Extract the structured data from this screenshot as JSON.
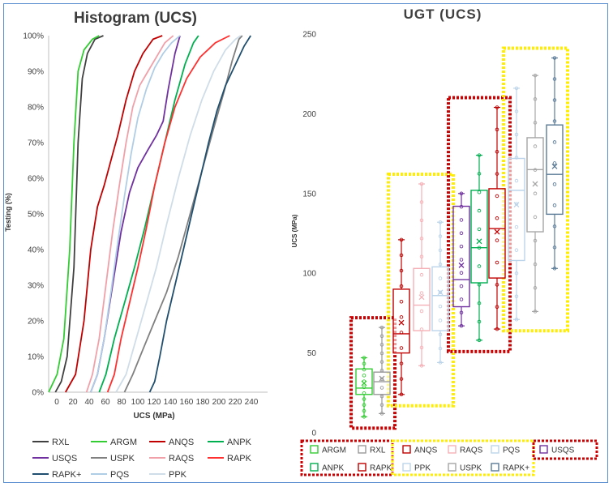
{
  "chart_data": [
    {
      "type": "line",
      "title": "Histogram (UCS)",
      "xlabel": "UCS (MPa)",
      "ylabel": "Testing (%)",
      "xlim": [
        0,
        260
      ],
      "ylim": [
        0,
        100
      ],
      "x_ticks": [
        "0",
        "20",
        "40",
        "60",
        "80",
        "100",
        "120",
        "140",
        "160",
        "180",
        "200",
        "220",
        "240"
      ],
      "y_ticks": [
        "0%",
        "10%",
        "20%",
        "30%",
        "40%",
        "50%",
        "60%",
        "70%",
        "80%",
        "90%",
        "100%"
      ],
      "legend_position": "bottom",
      "series": [
        {
          "name": "RXL",
          "color": "#404040",
          "points": [
            [
              8,
              0
            ],
            [
              15,
              3
            ],
            [
              22,
              10
            ],
            [
              30,
              35
            ],
            [
              35,
              70
            ],
            [
              40,
              88
            ],
            [
              46,
              95
            ],
            [
              55,
              99
            ],
            [
              65,
              100
            ]
          ]
        },
        {
          "name": "ARGM",
          "color": "#33cc33",
          "points": [
            [
              0,
              0
            ],
            [
              10,
              5
            ],
            [
              18,
              15
            ],
            [
              25,
              40
            ],
            [
              30,
              70
            ],
            [
              35,
              90
            ],
            [
              42,
              96
            ],
            [
              52,
              99
            ],
            [
              60,
              100
            ]
          ]
        },
        {
          "name": "ANQS",
          "color": "#c00000",
          "points": [
            [
              20,
              0
            ],
            [
              32,
              5
            ],
            [
              42,
              20
            ],
            [
              50,
              40
            ],
            [
              58,
              52
            ],
            [
              66,
              58
            ],
            [
              74,
              65
            ],
            [
              82,
              72
            ],
            [
              92,
              82
            ],
            [
              102,
              90
            ],
            [
              112,
              95
            ],
            [
              124,
              99
            ],
            [
              135,
              100
            ]
          ]
        },
        {
          "name": "ANPK",
          "color": "#00b050",
          "points": [
            [
              60,
              0
            ],
            [
              68,
              5
            ],
            [
              78,
              15
            ],
            [
              90,
              25
            ],
            [
              102,
              35
            ],
            [
              114,
              46
            ],
            [
              126,
              58
            ],
            [
              138,
              70
            ],
            [
              150,
              82
            ],
            [
              162,
              92
            ],
            [
              172,
              98
            ],
            [
              178,
              100
            ]
          ]
        },
        {
          "name": "USQS",
          "color": "#7030a0",
          "points": [
            [
              50,
              0
            ],
            [
              58,
              5
            ],
            [
              66,
              15
            ],
            [
              76,
              30
            ],
            [
              86,
              45
            ],
            [
              96,
              56
            ],
            [
              106,
              63
            ],
            [
              118,
              68
            ],
            [
              128,
              72
            ],
            [
              136,
              76
            ],
            [
              142,
              85
            ],
            [
              150,
              95
            ],
            [
              156,
              100
            ]
          ]
        },
        {
          "name": "USPK",
          "color": "#808080",
          "points": [
            [
              90,
              0
            ],
            [
              100,
              5
            ],
            [
              112,
              12
            ],
            [
              126,
              20
            ],
            [
              140,
              28
            ],
            [
              154,
              38
            ],
            [
              168,
              50
            ],
            [
              182,
              62
            ],
            [
              196,
              74
            ],
            [
              208,
              84
            ],
            [
              218,
              93
            ],
            [
              226,
              99
            ],
            [
              230,
              100
            ]
          ]
        },
        {
          "name": "RAQS",
          "color": "#f0a0a8",
          "points": [
            [
              45,
              0
            ],
            [
              52,
              5
            ],
            [
              60,
              15
            ],
            [
              68,
              30
            ],
            [
              76,
              45
            ],
            [
              84,
              58
            ],
            [
              92,
              70
            ],
            [
              100,
              80
            ],
            [
              108,
              86
            ],
            [
              118,
              90
            ],
            [
              128,
              94
            ],
            [
              138,
              98
            ],
            [
              148,
              100
            ]
          ]
        },
        {
          "name": "RAPK",
          "color": "#ff3030",
          "points": [
            [
              70,
              0
            ],
            [
              78,
              5
            ],
            [
              86,
              15
            ],
            [
              96,
              25
            ],
            [
              106,
              35
            ],
            [
              116,
              46
            ],
            [
              126,
              58
            ],
            [
              138,
              70
            ],
            [
              150,
              80
            ],
            [
              164,
              88
            ],
            [
              180,
              94
            ],
            [
              198,
              98
            ],
            [
              215,
              100
            ]
          ]
        },
        {
          "name": "RAPK+",
          "color": "#1f4e6e",
          "points": [
            [
              120,
              0
            ],
            [
              126,
              3
            ],
            [
              132,
              10
            ],
            [
              140,
              20
            ],
            [
              150,
              30
            ],
            [
              160,
              40
            ],
            [
              170,
              50
            ],
            [
              180,
              60
            ],
            [
              190,
              70
            ],
            [
              200,
              79
            ],
            [
              210,
              86
            ],
            [
              222,
              92
            ],
            [
              232,
              97
            ],
            [
              240,
              100
            ]
          ]
        },
        {
          "name": "PQS",
          "color": "#b0cde6",
          "points": [
            [
              50,
              0
            ],
            [
              58,
              5
            ],
            [
              66,
              15
            ],
            [
              74,
              28
            ],
            [
              82,
              42
            ],
            [
              90,
              55
            ],
            [
              98,
              67
            ],
            [
              106,
              77
            ],
            [
              116,
              85
            ],
            [
              126,
              91
            ],
            [
              136,
              95
            ],
            [
              146,
              98
            ],
            [
              156,
              100
            ]
          ]
        },
        {
          "name": "PPK",
          "color": "#cfdde8",
          "points": [
            [
              80,
              0
            ],
            [
              92,
              5
            ],
            [
              104,
              15
            ],
            [
              116,
              25
            ],
            [
              128,
              35
            ],
            [
              140,
              47
            ],
            [
              154,
              60
            ],
            [
              168,
              72
            ],
            [
              182,
              82
            ],
            [
              196,
              90
            ],
            [
              210,
              96
            ],
            [
              222,
              99
            ],
            [
              228,
              100
            ]
          ]
        }
      ]
    },
    {
      "type": "box",
      "title": "UGT (UCS)",
      "ylabel": "UCS (MPa)",
      "ylim": [
        0,
        250
      ],
      "y_ticks": [
        "0",
        "50",
        "100",
        "150",
        "200",
        "250"
      ],
      "boxes": [
        {
          "name": "ARGM",
          "color": "#33cc33",
          "min": 10,
          "q1": 24,
          "median": 28,
          "q3": 40,
          "max": 47,
          "mean": 31
        },
        {
          "name": "RXL",
          "color": "#999999",
          "min": 12,
          "q1": 24,
          "median": 32,
          "q3": 38,
          "max": 66,
          "mean": 34
        },
        {
          "name": "ANQS",
          "color": "#c00000",
          "min": 24,
          "q1": 50,
          "median": 62,
          "q3": 90,
          "max": 121,
          "mean": 69
        },
        {
          "name": "RAQS",
          "color": "#f4b0b6",
          "min": 42,
          "q1": 64,
          "median": 80,
          "q3": 103,
          "max": 156,
          "mean": 85
        },
        {
          "name": "PQS",
          "color": "#bcd4ea",
          "min": 44,
          "q1": 64,
          "median": 86,
          "q3": 104,
          "max": 132,
          "mean": 88
        },
        {
          "name": "USQS",
          "color": "#7030a0",
          "min": 67,
          "q1": 79,
          "median": 96,
          "q3": 142,
          "max": 150,
          "mean": 105
        },
        {
          "name": "ANPK",
          "color": "#00b050",
          "min": 58,
          "q1": 94,
          "median": 116,
          "q3": 152,
          "max": 174,
          "mean": 120
        },
        {
          "name": "RAPK",
          "color": "#c00000",
          "min": 65,
          "q1": 97,
          "median": 128,
          "q3": 153,
          "max": 204,
          "mean": 126
        },
        {
          "name": "PPK",
          "color": "#bcd4ea",
          "min": 71,
          "q1": 108,
          "median": 152,
          "q3": 172,
          "max": 216,
          "mean": 143
        },
        {
          "name": "USPK",
          "color": "#a6a6a6",
          "min": 76,
          "q1": 126,
          "median": 165,
          "q3": 185,
          "max": 224,
          "mean": 156
        },
        {
          "name": "RAPK+",
          "color": "#5a7a96",
          "min": 103,
          "q1": 137,
          "median": 162,
          "q3": 193,
          "max": 235,
          "mean": 167
        }
      ],
      "legend_row1": [
        {
          "name": "ARGM",
          "color": "#33cc33"
        },
        {
          "name": "RXL",
          "color": "#999999"
        },
        {
          "name": "ANQS",
          "color": "#c00000"
        },
        {
          "name": "RAQS",
          "color": "#f4b0b6"
        },
        {
          "name": "PQS",
          "color": "#bcd4ea"
        },
        {
          "name": "USQS",
          "color": "#7030a0"
        }
      ],
      "legend_row2": [
        {
          "name": "ANPK",
          "color": "#00b050"
        },
        {
          "name": "RAPK",
          "color": "#c00000"
        },
        {
          "name": "PPK",
          "color": "#bcd4ea"
        },
        {
          "name": "USPK",
          "color": "#a6a6a6"
        },
        {
          "name": "RAPK+",
          "color": "#5a7a96"
        }
      ]
    }
  ]
}
